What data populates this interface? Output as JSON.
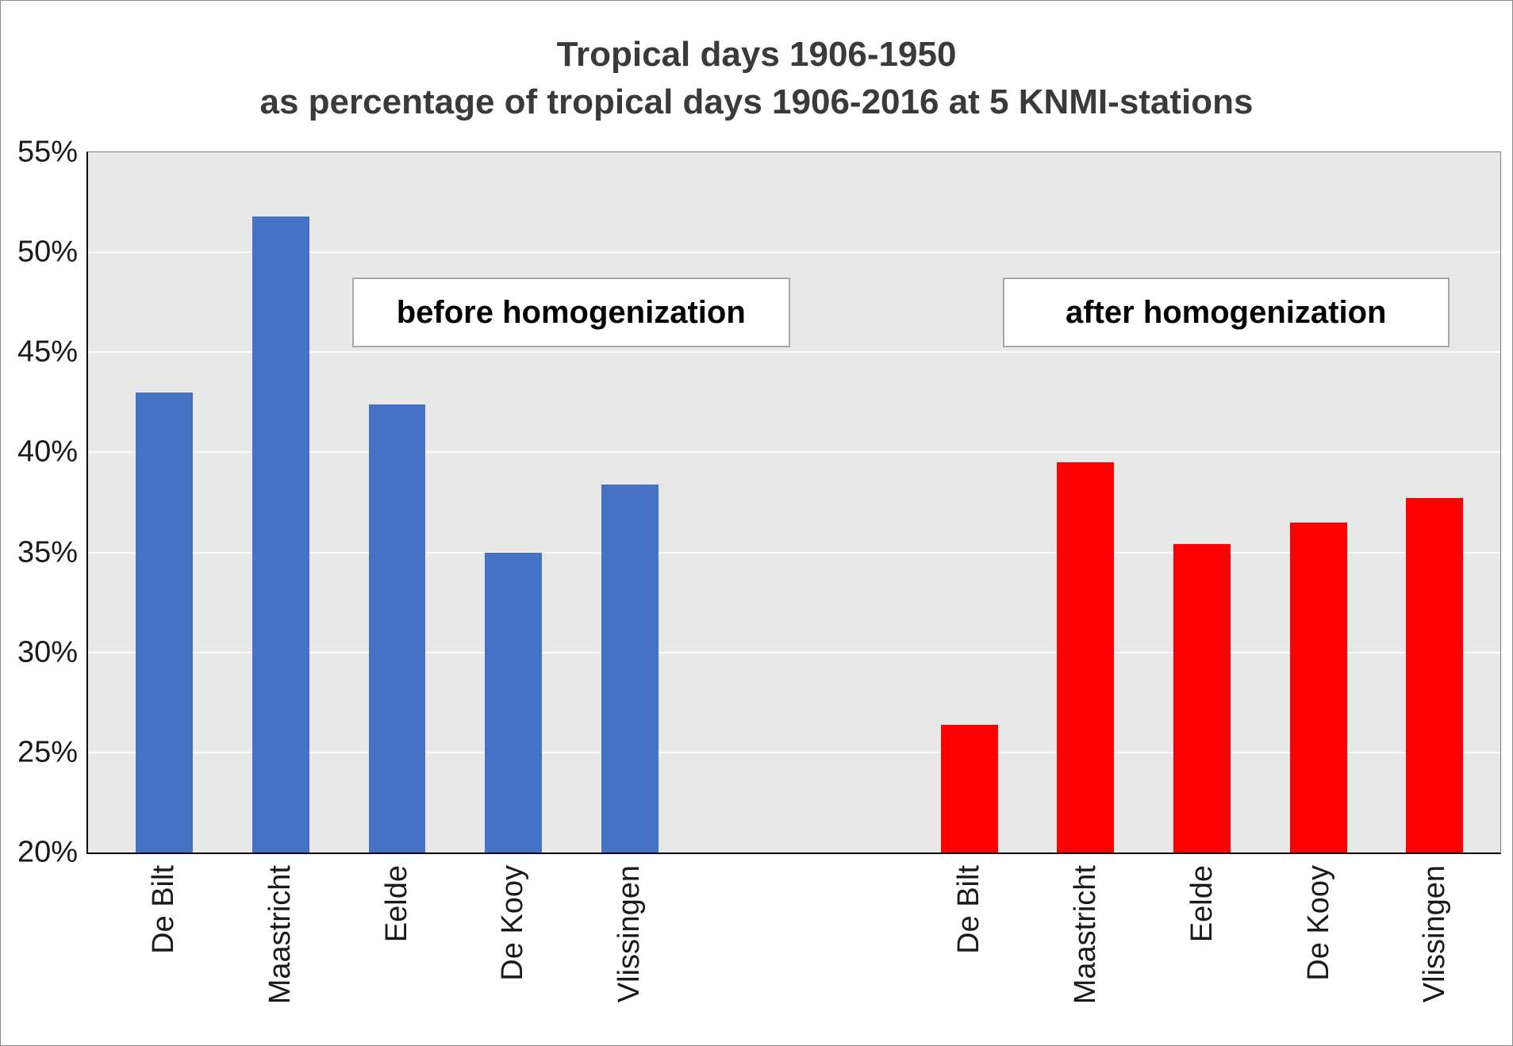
{
  "title": {
    "line1": "Tropical days 1906-1950",
    "line2": "as percentage of tropical days 1906-2016 at 5 KNMI-stations"
  },
  "annotations": {
    "before": "before homogenization",
    "after": "after homogenization"
  },
  "chart_data": {
    "type": "bar",
    "title": "Tropical days 1906-1950 as percentage of tropical days 1906-2016 at 5 KNMI-stations",
    "categories": [
      "De Bilt",
      "Maastricht",
      "Eelde",
      "De Kooy",
      "Vlissingen"
    ],
    "series": [
      {
        "name": "before homogenization",
        "color": "#4472C4",
        "values": [
          43.0,
          51.8,
          42.4,
          35.0,
          38.4
        ]
      },
      {
        "name": "after homogenization",
        "color": "#FF0000",
        "values": [
          26.4,
          39.5,
          35.4,
          36.5,
          37.7
        ]
      }
    ],
    "ylim": [
      20,
      55
    ],
    "yticks": [
      20,
      25,
      30,
      35,
      40,
      45,
      50,
      55
    ],
    "ytick_labels": [
      "20%",
      "25%",
      "30%",
      "35%",
      "40%",
      "45%",
      "50%",
      "55%"
    ],
    "grid": true,
    "gridline_color": "#FFFFFF",
    "plot_background": "#E8E8E8",
    "legend_position": "none"
  }
}
